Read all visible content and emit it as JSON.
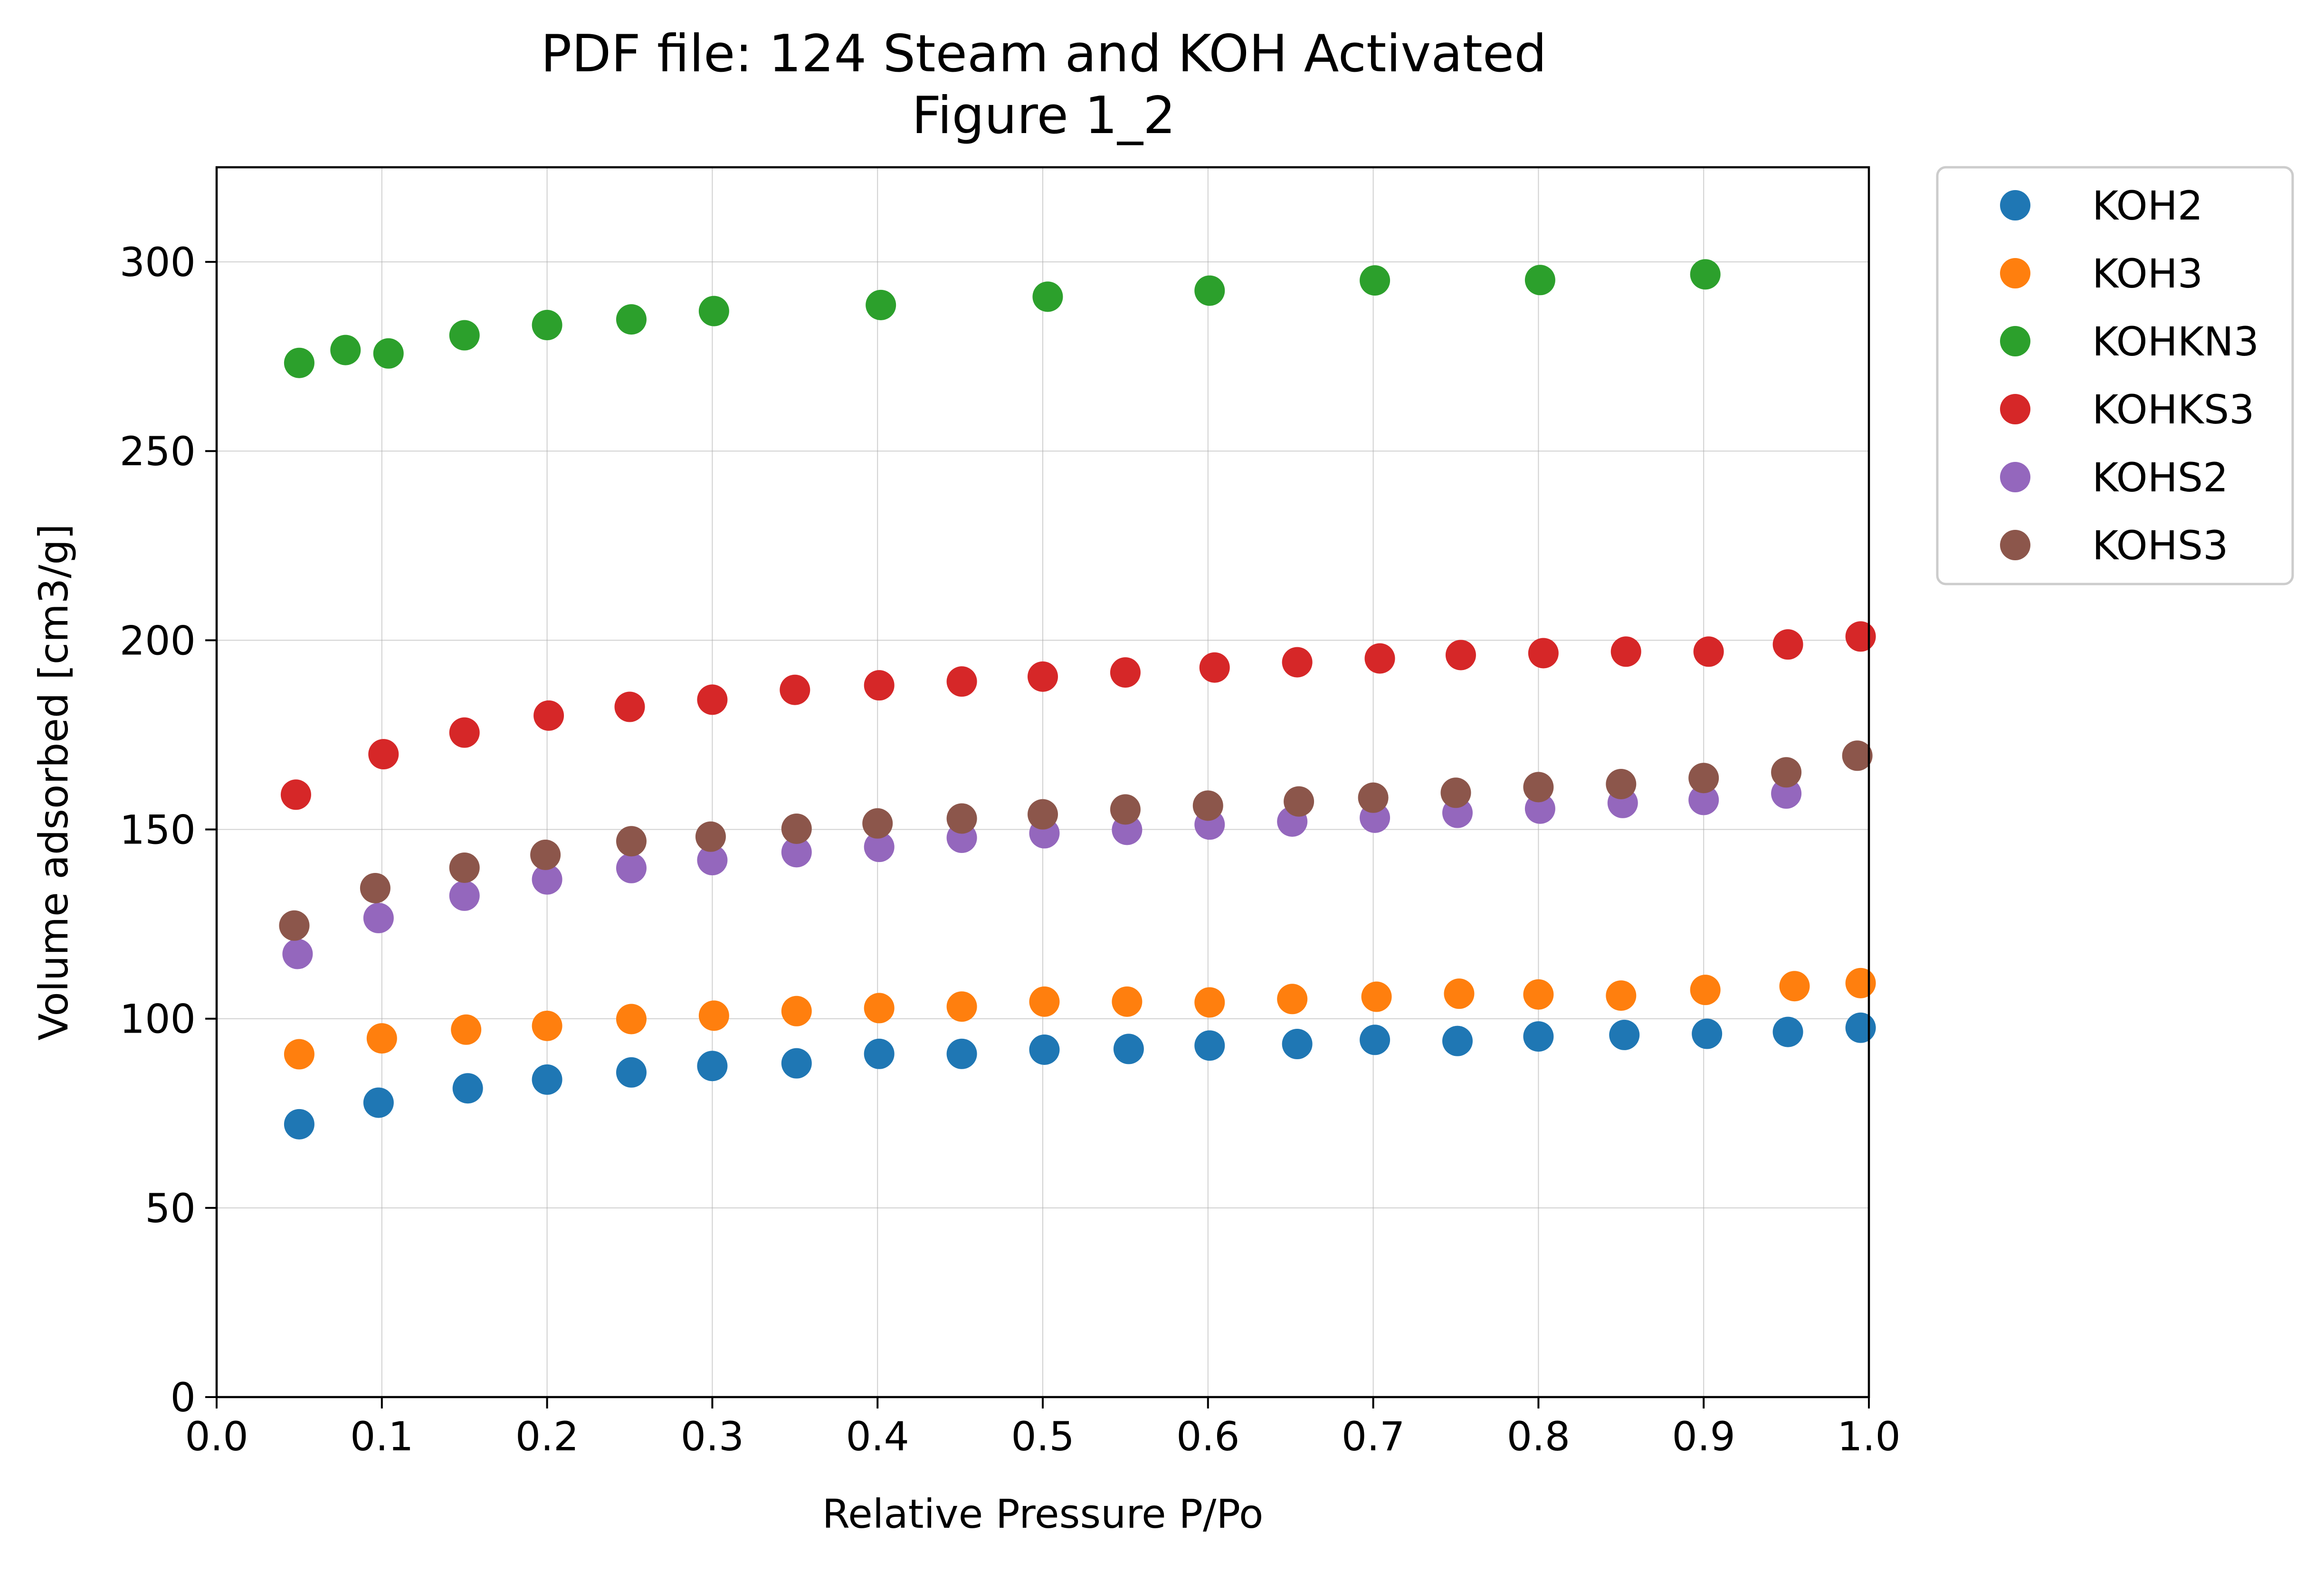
{
  "chart_data": {
    "type": "scatter",
    "title": "PDF file: 124 Steam and KOH Activated",
    "subtitle": "Figure 1_2",
    "xlabel": "Relative Pressure P/Po",
    "ylabel": "Volume adsorbed [cm3/g]",
    "xlim": [
      0.0,
      1.0
    ],
    "ylim": [
      0,
      325
    ],
    "xticks": [
      0.0,
      0.1,
      0.2,
      0.3,
      0.4,
      0.5,
      0.6,
      0.7,
      0.8,
      0.9,
      1.0
    ],
    "xtick_labels": [
      "0.0",
      "0.1",
      "0.2",
      "0.3",
      "0.4",
      "0.5",
      "0.6",
      "0.7",
      "0.8",
      "0.9",
      "1.0"
    ],
    "yticks": [
      0,
      50,
      100,
      150,
      200,
      250,
      300
    ],
    "ytick_labels": [
      "0",
      "50",
      "100",
      "150",
      "200",
      "250",
      "300"
    ],
    "grid": true,
    "legend_position": "outside-top-right",
    "series": [
      {
        "name": "KOH2",
        "color": "#1f77b4",
        "points": [
          [
            0.05,
            72.1
          ],
          [
            0.098,
            77.8
          ],
          [
            0.152,
            81.6
          ],
          [
            0.2,
            83.9
          ],
          [
            0.251,
            85.8
          ],
          [
            0.3,
            87.5
          ],
          [
            0.351,
            88.2
          ],
          [
            0.401,
            90.7
          ],
          [
            0.451,
            90.7
          ],
          [
            0.501,
            91.8
          ],
          [
            0.552,
            92.0
          ],
          [
            0.601,
            92.9
          ],
          [
            0.654,
            93.3
          ],
          [
            0.701,
            94.4
          ],
          [
            0.751,
            94.1
          ],
          [
            0.8,
            95.3
          ],
          [
            0.852,
            95.7
          ],
          [
            0.902,
            96.0
          ],
          [
            0.951,
            96.5
          ],
          [
            0.995,
            97.6
          ]
        ]
      },
      {
        "name": "KOH3",
        "color": "#ff7f0e",
        "points": [
          [
            0.05,
            90.6
          ],
          [
            0.1,
            94.8
          ],
          [
            0.151,
            97.1
          ],
          [
            0.2,
            98.1
          ],
          [
            0.251,
            99.9
          ],
          [
            0.301,
            100.8
          ],
          [
            0.351,
            102.0
          ],
          [
            0.401,
            102.8
          ],
          [
            0.451,
            103.2
          ],
          [
            0.501,
            104.5
          ],
          [
            0.551,
            104.5
          ],
          [
            0.601,
            104.3
          ],
          [
            0.651,
            105.2
          ],
          [
            0.702,
            105.8
          ],
          [
            0.752,
            106.6
          ],
          [
            0.8,
            106.4
          ],
          [
            0.85,
            106.1
          ],
          [
            0.901,
            107.6
          ],
          [
            0.955,
            108.6
          ],
          [
            0.995,
            109.4
          ]
        ]
      },
      {
        "name": "KOHKN3",
        "color": "#2ca02c",
        "points": [
          [
            0.05,
            273.3
          ],
          [
            0.078,
            276.7
          ],
          [
            0.104,
            275.8
          ],
          [
            0.15,
            280.6
          ],
          [
            0.2,
            283.3
          ],
          [
            0.251,
            284.8
          ],
          [
            0.301,
            287.0
          ],
          [
            0.402,
            288.6
          ],
          [
            0.503,
            290.8
          ],
          [
            0.601,
            292.4
          ],
          [
            0.701,
            295.1
          ],
          [
            0.801,
            295.2
          ],
          [
            0.901,
            296.7
          ]
        ]
      },
      {
        "name": "KOHKS3",
        "color": "#d62728",
        "points": [
          [
            0.048,
            159.2
          ],
          [
            0.101,
            169.9
          ],
          [
            0.15,
            175.6
          ],
          [
            0.201,
            180.1
          ],
          [
            0.25,
            182.4
          ],
          [
            0.3,
            184.3
          ],
          [
            0.35,
            186.9
          ],
          [
            0.401,
            188.1
          ],
          [
            0.451,
            189.1
          ],
          [
            0.5,
            190.4
          ],
          [
            0.55,
            191.5
          ],
          [
            0.604,
            192.8
          ],
          [
            0.654,
            194.2
          ],
          [
            0.704,
            195.2
          ],
          [
            0.753,
            196.1
          ],
          [
            0.803,
            196.6
          ],
          [
            0.853,
            197.0
          ],
          [
            0.903,
            197.0
          ],
          [
            0.951,
            198.9
          ],
          [
            0.995,
            201.0
          ]
        ]
      },
      {
        "name": "KOHS2",
        "color": "#9467bd",
        "points": [
          [
            0.049,
            117.1
          ],
          [
            0.098,
            126.6
          ],
          [
            0.15,
            132.5
          ],
          [
            0.2,
            136.8
          ],
          [
            0.251,
            139.8
          ],
          [
            0.3,
            141.9
          ],
          [
            0.351,
            144.0
          ],
          [
            0.401,
            145.4
          ],
          [
            0.451,
            147.8
          ],
          [
            0.501,
            149.0
          ],
          [
            0.551,
            149.9
          ],
          [
            0.601,
            151.3
          ],
          [
            0.651,
            152.1
          ],
          [
            0.701,
            153.1
          ],
          [
            0.751,
            154.4
          ],
          [
            0.801,
            155.5
          ],
          [
            0.851,
            157.0
          ],
          [
            0.9,
            157.8
          ],
          [
            0.95,
            159.5
          ]
        ]
      },
      {
        "name": "KOHS3",
        "color": "#8c564b",
        "points": [
          [
            0.047,
            124.6
          ],
          [
            0.096,
            134.5
          ],
          [
            0.15,
            139.9
          ],
          [
            0.199,
            143.3
          ],
          [
            0.251,
            146.9
          ],
          [
            0.299,
            148.1
          ],
          [
            0.351,
            150.2
          ],
          [
            0.4,
            151.6
          ],
          [
            0.451,
            152.9
          ],
          [
            0.5,
            154.0
          ],
          [
            0.55,
            155.3
          ],
          [
            0.6,
            156.3
          ],
          [
            0.655,
            157.4
          ],
          [
            0.7,
            158.4
          ],
          [
            0.75,
            159.7
          ],
          [
            0.8,
            161.2
          ],
          [
            0.85,
            162.0
          ],
          [
            0.9,
            163.6
          ],
          [
            0.95,
            165.1
          ],
          [
            0.993,
            169.5
          ]
        ]
      }
    ]
  }
}
